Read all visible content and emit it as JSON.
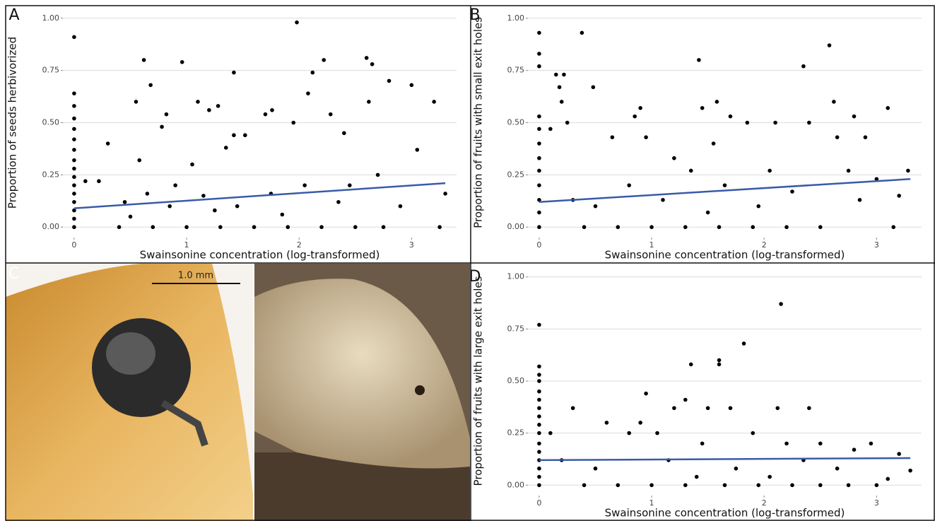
{
  "chart_data": [
    {
      "type": "scatter",
      "panel_label": "A",
      "x_label": "Swainsonine concentration (log-transformed)",
      "y_label": "Proportion of seeds herbivorized",
      "xlim": [
        -0.1,
        3.4
      ],
      "ylim": [
        -0.05,
        1.05
      ],
      "xticks": [
        0,
        1,
        2,
        3
      ],
      "yticks": [
        {
          "value": 0,
          "label": "0.00"
        },
        {
          "value": 0.25,
          "label": "0.25"
        },
        {
          "value": 0.5,
          "label": "0.50"
        },
        {
          "value": 0.75,
          "label": "0.75"
        },
        {
          "value": 1,
          "label": "1.00"
        }
      ],
      "grid": true,
      "color": "#000000",
      "x": [
        0,
        0,
        0,
        0,
        0,
        0,
        0,
        0,
        0,
        0,
        0,
        0,
        0,
        0,
        0,
        0,
        0.1,
        0.22,
        0.3,
        0.45,
        0.55,
        0.58,
        0.62,
        0.68,
        0.78,
        0.82,
        0.9,
        0.96,
        1.05,
        1.1,
        1.2,
        1.28,
        1.35,
        1.42,
        1.42,
        1.52,
        1.7,
        1.76,
        1.95,
        1.98,
        2.08,
        2.12,
        2.22,
        2.28,
        2.4,
        2.6,
        2.65,
        2.62,
        2.8,
        3.0,
        3.05,
        3.2,
        3.3,
        0.4,
        0.7,
        1.0,
        1.3,
        1.6,
        1.9,
        2.2,
        2.5,
        2.75,
        3.25,
        0.5,
        0.85,
        1.15,
        1.45,
        1.75,
        2.05,
        2.35,
        2.7,
        0.65,
        1.25,
        1.85,
        2.45,
        2.9
      ],
      "values": [
        0.91,
        0.64,
        0.58,
        0.52,
        0.47,
        0.42,
        0.37,
        0.32,
        0.28,
        0.24,
        0.2,
        0.16,
        0.12,
        0.08,
        0.04,
        0,
        0.22,
        0.22,
        0.4,
        0.12,
        0.6,
        0.32,
        0.8,
        0.68,
        0.48,
        0.54,
        0.2,
        0.79,
        0.3,
        0.6,
        0.56,
        0.58,
        0.38,
        0.74,
        0.44,
        0.44,
        0.54,
        0.56,
        0.5,
        0.98,
        0.64,
        0.74,
        0.8,
        0.54,
        0.45,
        0.81,
        0.78,
        0.6,
        0.7,
        0.68,
        0.37,
        0.6,
        0.16,
        0,
        0,
        0,
        0,
        0,
        0,
        0,
        0,
        0,
        0,
        0.05,
        0.1,
        0.15,
        0.1,
        0.16,
        0.2,
        0.12,
        0.25,
        0.16,
        0.08,
        0.06,
        0.2,
        0.1
      ],
      "fit": {
        "color": "#3a5ba9",
        "x": [
          0,
          3.3
        ],
        "values": [
          0.09,
          0.21
        ]
      }
    },
    {
      "type": "scatter",
      "panel_label": "B",
      "x_label": "Swainsonine concentration (log-transformed)",
      "y_label": "Proportion of fruits with small exit holes",
      "xlim": [
        -0.1,
        3.4
      ],
      "ylim": [
        -0.05,
        1.05
      ],
      "xticks": [
        0,
        1,
        2,
        3
      ],
      "yticks": [
        {
          "value": 0,
          "label": "0.00"
        },
        {
          "value": 0.25,
          "label": "0.25"
        },
        {
          "value": 0.5,
          "label": "0.50"
        },
        {
          "value": 0.75,
          "label": "0.75"
        },
        {
          "value": 1,
          "label": "1.00"
        }
      ],
      "grid": true,
      "color": "#000000",
      "x": [
        0,
        0,
        0,
        0,
        0,
        0,
        0,
        0,
        0,
        0,
        0,
        0,
        0.1,
        0.15,
        0.18,
        0.22,
        0.2,
        0.25,
        0.38,
        0.48,
        0.65,
        0.85,
        0.9,
        0.95,
        1.2,
        1.42,
        1.45,
        1.55,
        1.58,
        1.7,
        1.85,
        2.1,
        2.35,
        2.4,
        2.58,
        2.62,
        2.65,
        2.8,
        2.9,
        3.1,
        3.0,
        3.2,
        3.28,
        3.15,
        0.4,
        0.7,
        1.0,
        1.3,
        1.6,
        1.9,
        2.2,
        2.5,
        0.5,
        0.8,
        1.1,
        1.35,
        1.65,
        1.95,
        2.25,
        2.75,
        0.3,
        1.5,
        2.05,
        2.85
      ],
      "values": [
        0.93,
        0.83,
        0.77,
        0.53,
        0.47,
        0.4,
        0.33,
        0.27,
        0.2,
        0.13,
        0.07,
        0,
        0.47,
        0.73,
        0.67,
        0.73,
        0.6,
        0.5,
        0.93,
        0.67,
        0.43,
        0.53,
        0.57,
        0.43,
        0.33,
        0.8,
        0.57,
        0.4,
        0.6,
        0.53,
        0.5,
        0.5,
        0.77,
        0.5,
        0.87,
        0.6,
        0.43,
        0.53,
        0.43,
        0.57,
        0.23,
        0.15,
        0.27,
        0,
        0,
        0,
        0,
        0,
        0,
        0,
        0,
        0,
        0.1,
        0.2,
        0.13,
        0.27,
        0.2,
        0.1,
        0.17,
        0.27,
        0.13,
        0.07,
        0.27,
        0.13
      ],
      "fit": {
        "color": "#3a5ba9",
        "x": [
          0,
          3.3
        ],
        "values": [
          0.12,
          0.23
        ]
      }
    },
    {
      "type": "scatter",
      "panel_label": "D",
      "x_label": "Swainsonine concentration (log-transformed)",
      "y_label": "Proportion of fruits with large exit holes",
      "xlim": [
        -0.1,
        3.4
      ],
      "ylim": [
        -0.05,
        1.05
      ],
      "xticks": [
        0,
        1,
        2,
        3
      ],
      "yticks": [
        {
          "value": 0,
          "label": "0.00"
        },
        {
          "value": 0.25,
          "label": "0.25"
        },
        {
          "value": 0.5,
          "label": "0.50"
        },
        {
          "value": 0.75,
          "label": "0.75"
        },
        {
          "value": 1,
          "label": "1.00"
        }
      ],
      "grid": true,
      "color": "#000000",
      "x": [
        0,
        0,
        0,
        0,
        0,
        0,
        0,
        0,
        0,
        0,
        0,
        0,
        0,
        0,
        0,
        0,
        0.1,
        0.3,
        0.95,
        1.35,
        1.3,
        1.6,
        1.6,
        1.82,
        2.15,
        2.12,
        2.4,
        1.5,
        1.7,
        1.2,
        0.9,
        0.6,
        0.8,
        1.05,
        1.45,
        1.9,
        2.2,
        2.5,
        2.8,
        2.95,
        3.2,
        3.3,
        3.1,
        0.4,
        0.7,
        1.0,
        1.3,
        1.65,
        1.95,
        2.25,
        2.5,
        2.75,
        3.0,
        0.5,
        1.15,
        1.75,
        2.35,
        2.65,
        0.2,
        1.4,
        2.05
      ],
      "values": [
        0.77,
        0.57,
        0.53,
        0.5,
        0.45,
        0.41,
        0.37,
        0.33,
        0.29,
        0.25,
        0.2,
        0.16,
        0.12,
        0.08,
        0.04,
        0,
        0.25,
        0.37,
        0.44,
        0.58,
        0.41,
        0.6,
        0.58,
        0.68,
        0.87,
        0.37,
        0.37,
        0.37,
        0.37,
        0.37,
        0.3,
        0.3,
        0.25,
        0.25,
        0.2,
        0.25,
        0.2,
        0.2,
        0.17,
        0.2,
        0.15,
        0.07,
        0.03,
        0,
        0,
        0,
        0,
        0,
        0,
        0,
        0,
        0,
        0,
        0.08,
        0.12,
        0.08,
        0.12,
        0.08,
        0.12,
        0.04,
        0.04
      ],
      "fit": {
        "color": "#3a5ba9",
        "x": [
          0,
          3.3
        ],
        "values": [
          0.12,
          0.13
        ]
      }
    }
  ],
  "photo_panel": {
    "panel_label": "C",
    "scale_bar": "1.0 mm"
  }
}
